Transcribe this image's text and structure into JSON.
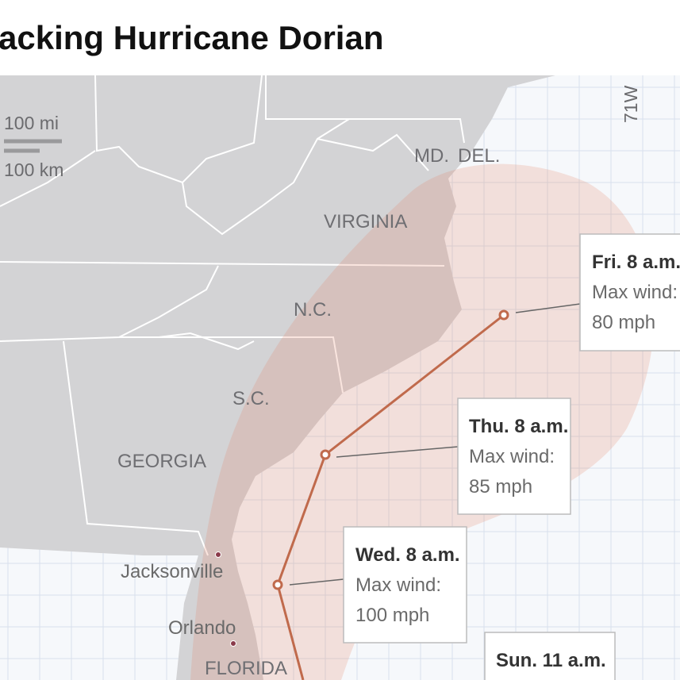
{
  "title": "acking Hurricane Dorian",
  "scale": {
    "miles": "100 mi",
    "km": "100 km"
  },
  "longitude_label": "71W",
  "states": [
    "MD.",
    "DEL.",
    "VIRGINIA",
    "N.C.",
    "S.C.",
    "GEORGIA",
    "FLORIDA"
  ],
  "cities": [
    "Jacksonville",
    "Orlando"
  ],
  "callouts": [
    {
      "time": "Fri. 8 a.m.",
      "wind_label": "Max wind:",
      "wind": "80 mph"
    },
    {
      "time": "Thu. 8 a.m.",
      "wind_label": "Max wind:",
      "wind": "85 mph"
    },
    {
      "time": "Wed. 8 a.m.",
      "wind_label": "Max wind:",
      "wind": "100 mph"
    },
    {
      "time": "Sun. 11 a.m."
    }
  ]
}
